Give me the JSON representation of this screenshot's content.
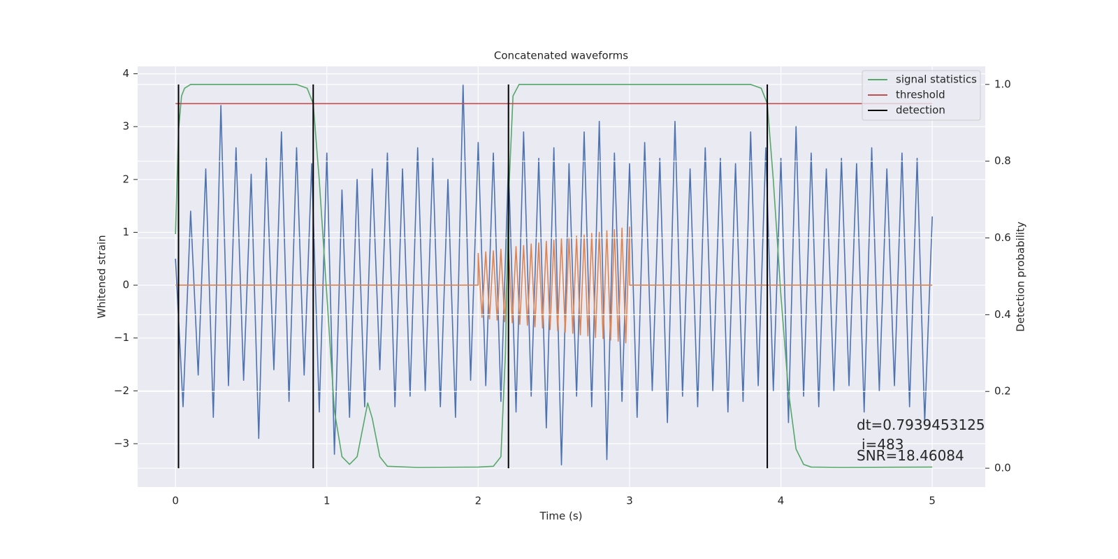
{
  "chart_data": {
    "type": "line",
    "title": "Concatenated waveforms",
    "xlabel": "Time (s)",
    "ylabel": "Whitened strain",
    "y2label": "Detection probability",
    "xlim": [
      -0.25,
      5.35
    ],
    "xticks": [
      0,
      1,
      2,
      3,
      4,
      5
    ],
    "ylim": [
      -3.82,
      4.14
    ],
    "yticks": [
      {
        "value": -3,
        "label": "−3"
      },
      {
        "value": -2,
        "label": "−2"
      },
      {
        "value": -1,
        "label": "−1"
      },
      0,
      1,
      2,
      3,
      4
    ],
    "y2lim": [
      -0.049,
      1.047
    ],
    "y2ticks": [
      {
        "value": 0,
        "label": "0.0"
      },
      0.2,
      0.4,
      0.6,
      0.8,
      {
        "value": 1,
        "label": "1.0"
      }
    ],
    "grid": true,
    "legend_position": "upper right",
    "series": [
      {
        "color": "#4c72b0",
        "x": [
          0,
          0.05,
          0.1,
          0.15,
          0.2,
          0.25,
          0.3,
          0.35,
          0.4,
          0.45,
          0.5,
          0.55,
          0.6,
          0.65,
          0.7,
          0.75,
          0.8,
          0.85,
          0.9,
          0.95,
          1,
          1.05,
          1.1,
          1.15,
          1.2,
          1.25,
          1.3,
          1.35,
          1.4,
          1.45,
          1.5,
          1.55,
          1.6,
          1.65,
          1.7,
          1.75,
          1.8,
          1.85,
          1.9,
          1.95,
          2,
          2.05,
          2.1,
          2.15,
          2.2,
          2.25,
          2.3,
          2.35,
          2.4,
          2.45,
          2.5,
          2.55,
          2.6,
          2.65,
          2.7,
          2.75,
          2.8,
          2.85,
          2.9,
          2.95,
          3,
          3.05,
          3.1,
          3.15,
          3.2,
          3.25,
          3.3,
          3.35,
          3.4,
          3.45,
          3.5,
          3.55,
          3.6,
          3.65,
          3.7,
          3.75,
          3.8,
          3.85,
          3.9,
          3.95,
          4,
          4.05,
          4.1,
          4.15,
          4.2,
          4.25,
          4.3,
          4.35,
          4.4,
          4.45,
          4.5,
          4.55,
          4.6,
          4.65,
          4.7,
          4.75,
          4.8,
          4.85,
          4.9,
          4.95,
          5
        ],
        "values": [
          0.5,
          -2.3,
          1.4,
          -1.7,
          2.2,
          -2.5,
          3.4,
          -1.9,
          2.6,
          -1.8,
          2.1,
          -2.9,
          2.4,
          -1.6,
          2.9,
          -2.2,
          2.6,
          -1.7,
          2.3,
          -2.4,
          2.5,
          -3.2,
          1.8,
          -2.5,
          2.0,
          -2.3,
          2.2,
          -1.6,
          2.5,
          -2.3,
          2.2,
          -2.1,
          2.6,
          -2.0,
          2.4,
          -2.3,
          2.0,
          -2.5,
          3.8,
          -1.8,
          2.7,
          -1.9,
          2.5,
          -2.2,
          2.3,
          -2.4,
          2.9,
          -2.1,
          2.4,
          -2.7,
          2.6,
          -3.4,
          2.3,
          -2.1,
          2.9,
          -2.3,
          3.1,
          -3.3,
          2.5,
          -2.2,
          2.3,
          -2.5,
          2.7,
          -2.0,
          2.4,
          -2.6,
          3.1,
          -2.1,
          2.2,
          -2.3,
          2.6,
          -2.0,
          2.4,
          -2.4,
          2.3,
          -2.2,
          2.9,
          -1.9,
          2.6,
          -2.0,
          2.4,
          -2.6,
          3.0,
          -2.1,
          2.5,
          -2.3,
          2.2,
          -2.0,
          2.4,
          -1.9,
          2.3,
          -2.4,
          2.6,
          -2.0,
          2.2,
          -1.9,
          2.5,
          -2.3,
          2.4,
          -2.6,
          1.3
        ]
      },
      {
        "color": "#dd8452",
        "x": [
          0,
          1.999,
          2,
          2.025,
          2.05,
          2.075,
          2.1,
          2.125,
          2.15,
          2.175,
          2.2,
          2.225,
          2.25,
          2.275,
          2.3,
          2.325,
          2.35,
          2.375,
          2.4,
          2.425,
          2.45,
          2.475,
          2.5,
          2.525,
          2.55,
          2.575,
          2.6,
          2.625,
          2.65,
          2.675,
          2.7,
          2.725,
          2.75,
          2.775,
          2.8,
          2.825,
          2.85,
          2.875,
          2.9,
          2.925,
          2.95,
          2.975,
          3,
          3.001,
          5
        ],
        "values": [
          0,
          0,
          0.6,
          -0.61,
          0.63,
          -0.64,
          0.65,
          -0.66,
          0.68,
          -0.69,
          0.7,
          -0.71,
          0.73,
          -0.74,
          0.75,
          -0.76,
          0.78,
          -0.79,
          0.8,
          -0.81,
          0.83,
          -0.84,
          0.85,
          -0.86,
          0.88,
          -0.89,
          0.9,
          -0.91,
          0.93,
          -0.94,
          0.95,
          -0.96,
          0.98,
          -0.99,
          1.0,
          -1.01,
          1.03,
          -1.04,
          1.05,
          -1.06,
          1.08,
          -1.09,
          1.1,
          0,
          0
        ]
      },
      {
        "name": "signal statistics",
        "color": "#55a868",
        "axis": "y2",
        "x": [
          0,
          0.02,
          0.04,
          0.06,
          0.1,
          0.8,
          0.87,
          0.91,
          0.95,
          1.0,
          1.05,
          1.1,
          1.15,
          1.2,
          1.25,
          1.27,
          1.3,
          1.35,
          1.4,
          1.6,
          2.0,
          2.1,
          2.15,
          2.18,
          2.2,
          2.23,
          2.27,
          2.4,
          3.8,
          3.87,
          3.91,
          3.95,
          4.0,
          4.05,
          4.1,
          4.15,
          4.2,
          4.4,
          5
        ],
        "values": [
          0.61,
          0.88,
          0.97,
          0.99,
          1.0,
          1.0,
          0.99,
          0.95,
          0.75,
          0.45,
          0.15,
          0.03,
          0.01,
          0.03,
          0.13,
          0.17,
          0.13,
          0.03,
          0.005,
          0.002,
          0.003,
          0.005,
          0.03,
          0.3,
          0.7,
          0.97,
          1.0,
          1.0,
          1.0,
          0.99,
          0.95,
          0.75,
          0.45,
          0.2,
          0.05,
          0.01,
          0.003,
          0.002,
          0.003
        ]
      },
      {
        "name": "threshold",
        "color": "#c44e52",
        "axis": "y2",
        "x": [
          0,
          5
        ],
        "values": [
          0.95,
          0.95
        ]
      }
    ],
    "detections": {
      "name": "detection",
      "color": "#000000",
      "x": [
        0.02,
        0.91,
        2.2,
        3.91
      ],
      "span": [
        0,
        1
      ]
    },
    "annotations": [
      "dt=0.7939453125",
      "i=483",
      "SNR=18.46084"
    ]
  }
}
